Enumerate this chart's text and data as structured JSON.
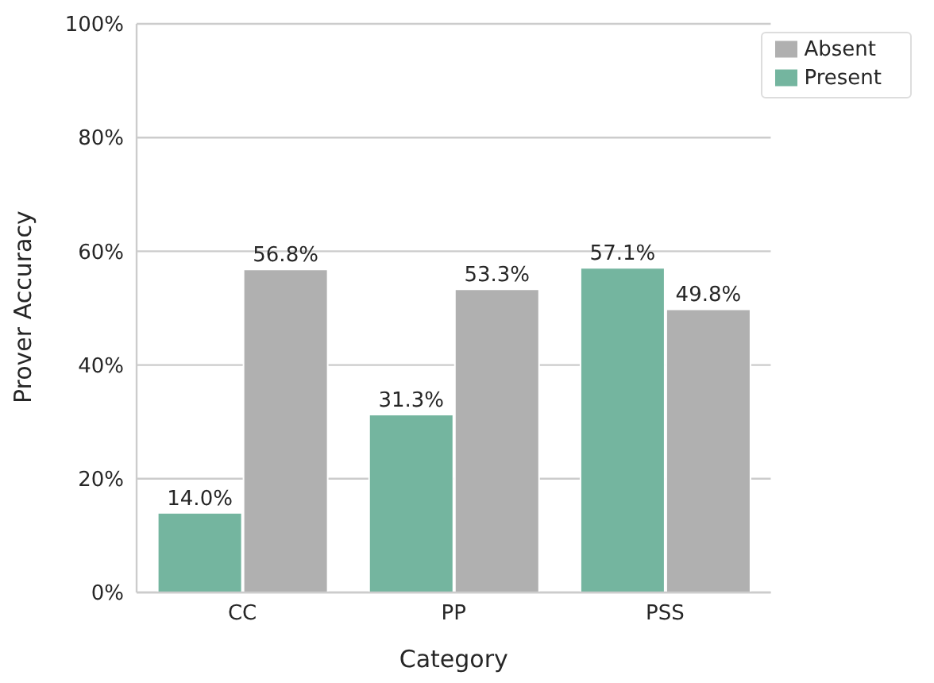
{
  "chart_data": {
    "type": "bar",
    "xlabel": "Category",
    "ylabel": "Prover Accuracy",
    "categories": [
      "CC",
      "PP",
      "PSS"
    ],
    "series": [
      {
        "name": "Present",
        "color": "#74b59f",
        "values": [
          14.0,
          31.3,
          57.1
        ],
        "value_labels": [
          "14.0%",
          "31.3%",
          "57.1%"
        ]
      },
      {
        "name": "Absent",
        "color": "#b0b0b0",
        "values": [
          56.8,
          53.3,
          49.8
        ],
        "value_labels": [
          "56.8%",
          "53.3%",
          "49.8%"
        ]
      }
    ],
    "ylim": [
      0,
      100
    ],
    "yticks": [
      {
        "value": 0,
        "label": "0%"
      },
      {
        "value": 20,
        "label": "20%"
      },
      {
        "value": 40,
        "label": "40%"
      },
      {
        "value": 60,
        "label": "60%"
      },
      {
        "value": 80,
        "label": "80%"
      },
      {
        "value": 100,
        "label": "100%"
      }
    ],
    "grid": "y",
    "legend": "top right"
  }
}
